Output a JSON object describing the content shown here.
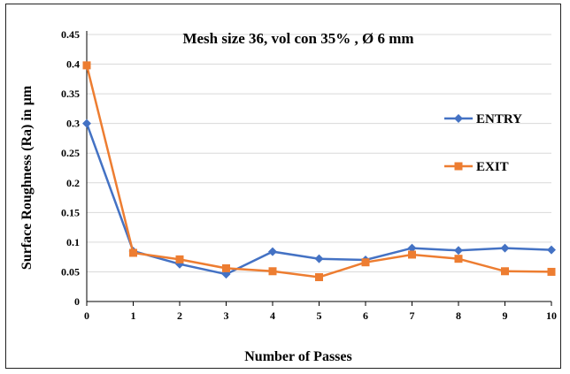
{
  "chart_data": {
    "type": "line",
    "title": "Mesh size 36, vol con 35% , Ø 6 mm",
    "xlabel": "Number of Passes",
    "ylabel": "Surface Roughness (Ra) in μm",
    "x": [
      0,
      1,
      2,
      3,
      4,
      5,
      6,
      7,
      8,
      9,
      10
    ],
    "x_ticks": [
      "0",
      "1",
      "2",
      "3",
      "4",
      "5",
      "6",
      "7",
      "8",
      "9",
      "10"
    ],
    "y_ticks": [
      "0",
      "0.05",
      "0.1",
      "0.15",
      "0.2",
      "0.25",
      "0.3",
      "0.35",
      "0.4",
      "0.45"
    ],
    "xlim": [
      0,
      10
    ],
    "ylim": [
      0,
      0.45
    ],
    "grid": "horizontal",
    "legend_position": "right",
    "series": [
      {
        "name": "ENTRY",
        "color": "#4472C4",
        "marker": "diamond",
        "values": [
          0.3,
          0.085,
          0.063,
          0.046,
          0.084,
          0.072,
          0.07,
          0.09,
          0.086,
          0.09,
          0.087
        ]
      },
      {
        "name": "EXIT",
        "color": "#ED7D31",
        "marker": "square",
        "values": [
          0.398,
          0.082,
          0.071,
          0.056,
          0.051,
          0.041,
          0.066,
          0.079,
          0.072,
          0.051,
          0.05
        ]
      }
    ]
  }
}
